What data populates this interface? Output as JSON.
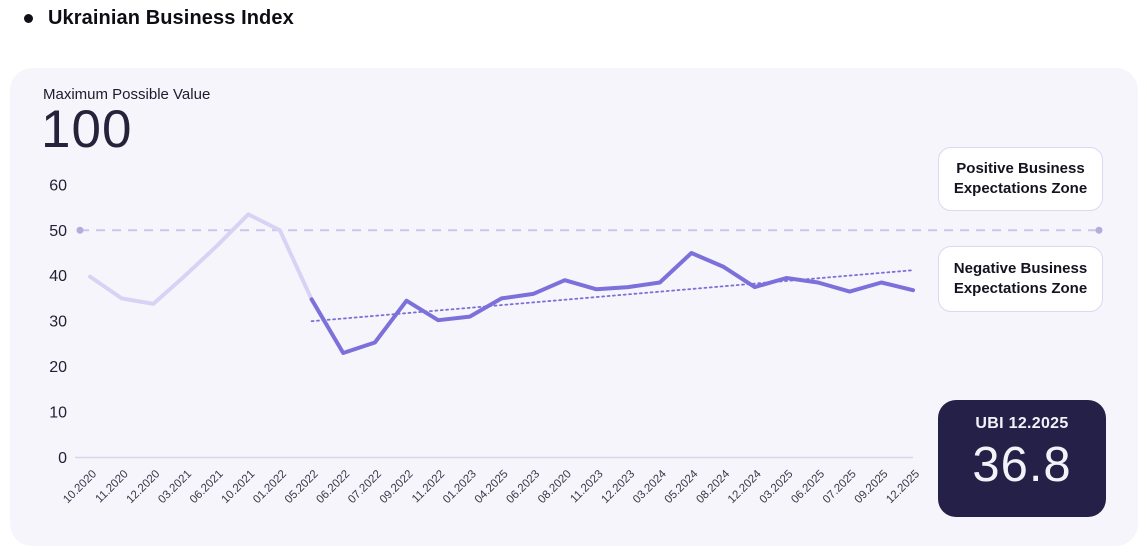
{
  "page": {
    "title": "Ukrainian Business Index"
  },
  "panel": {
    "max_label": "Maximum Possible Value",
    "max_value": "100",
    "zones": {
      "positive": [
        "Positive Business",
        "Expectations Zone"
      ],
      "negative": [
        "Negative Business",
        "Expectations Zone"
      ]
    },
    "badge": {
      "label": "UBI 12.2025",
      "value": "36.8"
    }
  },
  "colors": {
    "accent": "#7c70da",
    "accent_light": "#d8d3f4",
    "threshold": "#cbc5ea",
    "card_bg": "#f7f5fc",
    "badge_bg": "#252047"
  },
  "chart_data": {
    "type": "line",
    "title": "Ukrainian Business Index",
    "xlabel": "",
    "ylabel": "",
    "ylim": [
      0,
      60
    ],
    "yticks": [
      0,
      10,
      20,
      30,
      40,
      50,
      60
    ],
    "grid": false,
    "legend": "none",
    "categories": [
      "10.2020",
      "11.2020",
      "12.2020",
      "03.2021",
      "06.2021",
      "10.2021",
      "01.2022",
      "05.2022",
      "06.2022",
      "07.2022",
      "09.2022",
      "11.2022",
      "01.2023",
      "04.2025",
      "06.2023",
      "08.2020",
      "11.2023",
      "12.2023",
      "03.2024",
      "05.2024",
      "08.2024",
      "12.2024",
      "03.2025",
      "06.2025",
      "07.2025",
      "09.2025",
      "12.2025"
    ],
    "segments": [
      {
        "name": "ubi-pre-invasion",
        "color": "#d8d3f4",
        "start_index": 0,
        "values": [
          39.8,
          35,
          33.8,
          40,
          46.5,
          53.5,
          50,
          34.8
        ]
      },
      {
        "name": "ubi-current",
        "color": "#7c70da",
        "start_index": 7,
        "values": [
          34.8,
          23,
          25.3,
          34.5,
          30.2,
          31,
          35,
          36,
          39,
          37,
          37.5,
          38.5,
          45,
          42,
          37.5,
          39.5,
          38.5,
          36.5,
          38.5,
          36.8
        ]
      }
    ],
    "threshold": {
      "value": 50,
      "style": "dashed",
      "color": "#cbc5ea",
      "dot_color": "#b3acdc"
    },
    "trendline": {
      "style": "dotted",
      "color": "#7b70d8",
      "start_index": 7,
      "start_value": 30,
      "end_index": 26,
      "end_value": 41.2
    }
  }
}
